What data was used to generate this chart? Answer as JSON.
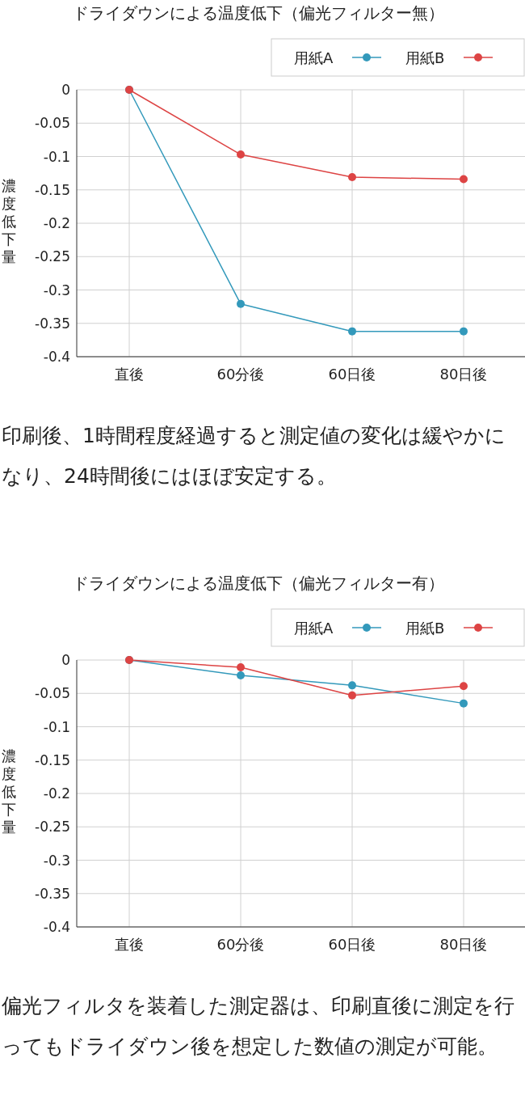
{
  "chart_data": [
    {
      "type": "line",
      "title": "ドライダウンによる温度低下（偏光フィルター無）",
      "ylabel": "濃度低下量",
      "categories": [
        "直後",
        "60分後",
        "60日後",
        "80日後"
      ],
      "series": [
        {
          "name": "用紙A",
          "color": "#3399bb",
          "values": [
            0,
            -0.321,
            -0.362,
            -0.362
          ]
        },
        {
          "name": "用紙B",
          "color": "#dd4444",
          "values": [
            0,
            -0.097,
            -0.131,
            -0.134
          ]
        }
      ],
      "ylim": [
        -0.4,
        0
      ],
      "yticks": [
        -0.4,
        -0.35,
        -0.3,
        -0.25,
        -0.2,
        -0.15,
        -0.1,
        -0.05,
        0
      ],
      "grid": true,
      "legend": "top right",
      "marker": "circle",
      "annotations": [
        "印刷後、1時間程度経過すると測定値の変化は緩やかになり、24時間後にはほぼ安定する。"
      ]
    },
    {
      "type": "line",
      "title": "ドライダウンによる温度低下（偏光フィルター有）",
      "ylabel": "濃度低下量",
      "categories": [
        "直後",
        "60分後",
        "60日後",
        "80日後"
      ],
      "series": [
        {
          "name": "用紙A",
          "color": "#3399bb",
          "values": [
            0,
            -0.023,
            -0.038,
            -0.065
          ]
        },
        {
          "name": "用紙B",
          "color": "#dd4444",
          "values": [
            0,
            -0.011,
            -0.053,
            -0.039
          ]
        }
      ],
      "ylim": [
        -0.4,
        0
      ],
      "yticks": [
        -0.4,
        -0.35,
        -0.3,
        -0.25,
        -0.2,
        -0.15,
        -0.1,
        -0.05,
        0
      ],
      "grid": true,
      "legend": "top right",
      "marker": "circle",
      "annotations": [
        "偏光フィルタを装着した測定器は、印刷直後に測定を行ってもドライダウン後を想定した数値の測定が可能。"
      ]
    }
  ]
}
